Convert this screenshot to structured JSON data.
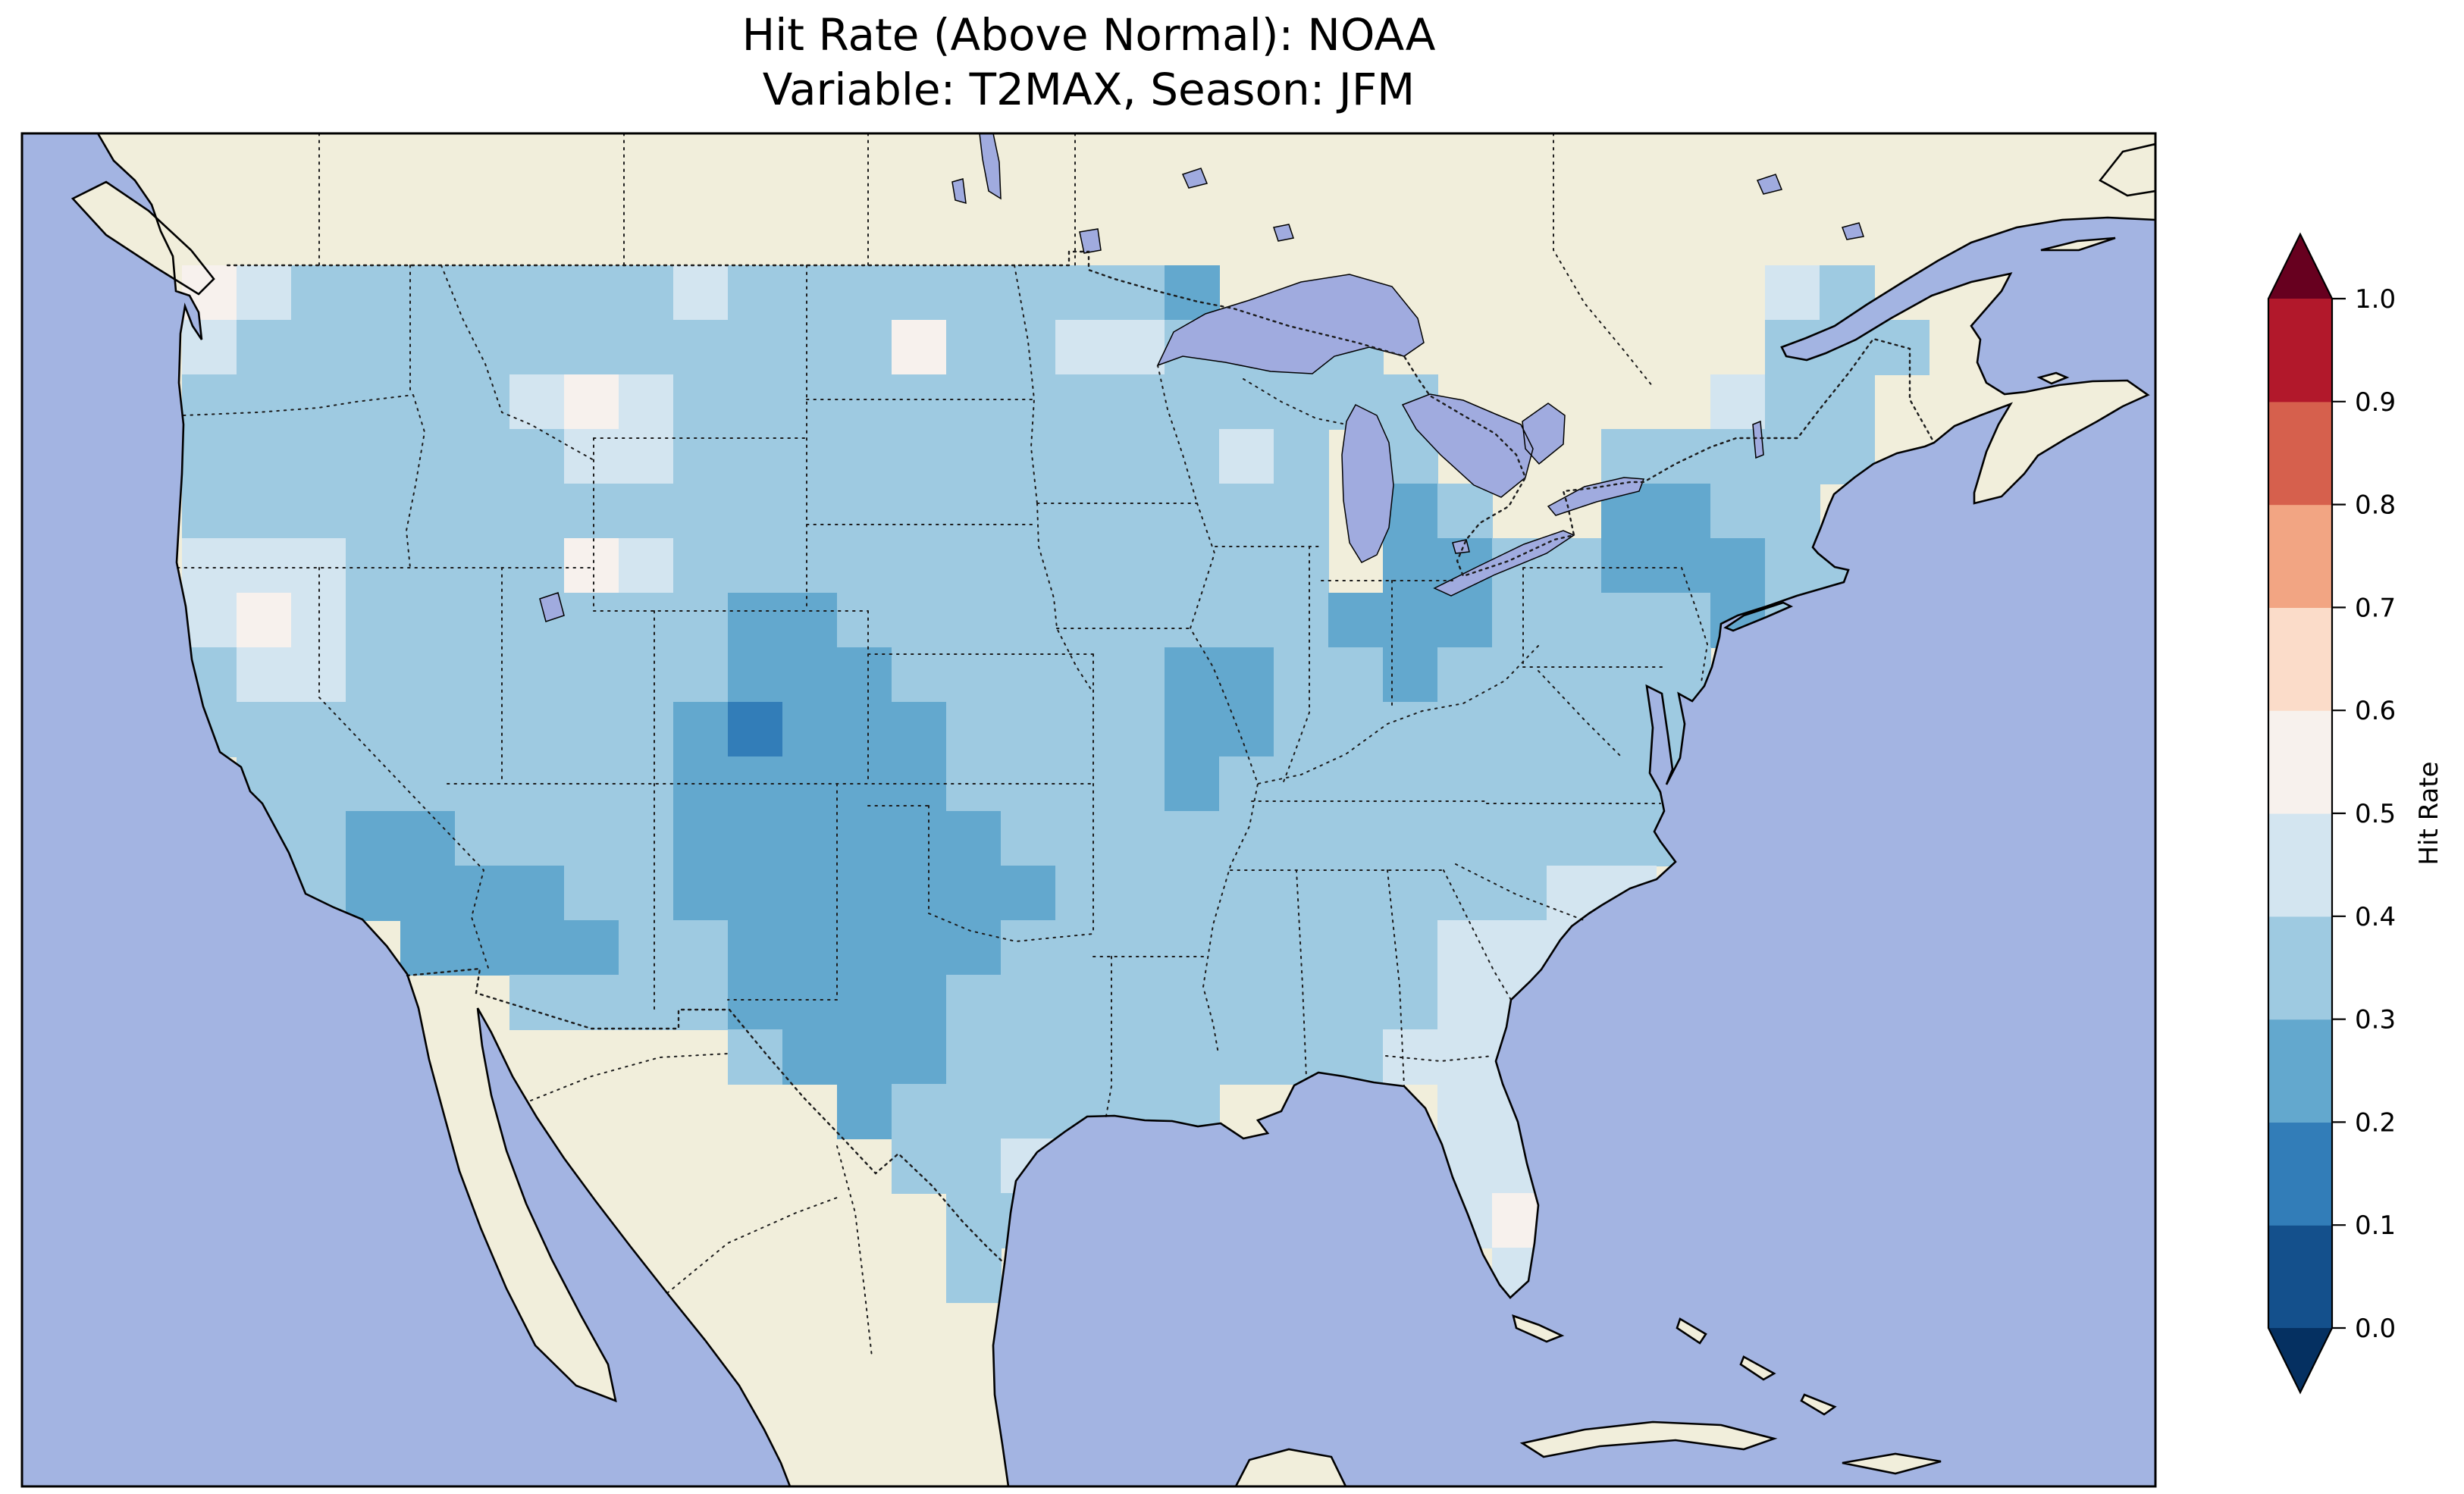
{
  "figure": {
    "title_line1": "Hit Rate (Above Normal): NOAA",
    "title_line2": "Variable: T2MAX, Season: JFM"
  },
  "colorbar": {
    "label": "Hit Rate",
    "ticks": [
      "0.0",
      "0.1",
      "0.2",
      "0.3",
      "0.4",
      "0.5",
      "0.6",
      "0.7",
      "0.8",
      "0.9",
      "1.0"
    ],
    "segment_colors_bottom_to_top": [
      "#14508c",
      "#327db8",
      "#63a8ce",
      "#9ecae1",
      "#d3e5f0",
      "#f7f1ed",
      "#fbdcc9",
      "#f2a583",
      "#d6604d",
      "#b2182b"
    ],
    "extend_under_color": "#053061",
    "extend_over_color": "#67001f"
  },
  "map": {
    "ocean_color": "#a3b4e2",
    "land_color": "#f1eedb",
    "lake_color": "#a0abdf",
    "coastline_color": "#000000",
    "border_color": "#1c1c1c"
  },
  "chart_data": {
    "type": "heatmap",
    "title": "Hit Rate (Above Normal): NOAA",
    "subtitle": "Variable: T2MAX, Season: JFM",
    "metric": "Hit Rate (Above Normal)",
    "source": "NOAA",
    "variable": "T2MAX",
    "season": "JFM",
    "region": "Contiguous United States",
    "colorbar_label": "Hit Rate",
    "colorbar_range": [
      0.0,
      1.0
    ],
    "colorbar_tick_step": 0.1,
    "legend_position": "right, vertical, extended triangles both ends",
    "bin_values": {
      "1": "0.10-0.20",
      "2": "0.20-0.30",
      "3": "0.30-0.40",
      "4": "0.40-0.50",
      "5": "0.50-0.60"
    },
    "bin_colors": {
      "1": "#327db8",
      "2": "#63a8ce",
      "3": "#9ecae1",
      "4": "#d3e5f0",
      "5": "#f7f1ed"
    },
    "no_data_char": ".",
    "grid_extent_deg": {
      "west": -124.5,
      "east": -65.4,
      "north": 49.0,
      "south": 25.0
    },
    "grid_rows_north_to_south": [
      "5433333334333333332..........43..",
      "4333333333333533443333.......333.",
      "33333345433333333333333.....433..",
      "333333344333333333343.3...33333..",
      "333333333333333333333.23..2233...",
      "444333354333333333333.223322233..",
      "454333333322333333333222333323...",
      "3443333333222333332233233333.....",
      "3333333332122233332233333333.....",
      ".333333332222233332333333333.....",
      ".3322333322222233333333333333....",
      "..3222233222222233333333344......",
      "....2222332222233333333444.......",
      "......3333222233333333344........",
      "..........322233333333444........",
      "............2333333....44........",
      ".............334.......44........",
      "..............33.......45........",
      "..............3.........4........"
    ]
  }
}
